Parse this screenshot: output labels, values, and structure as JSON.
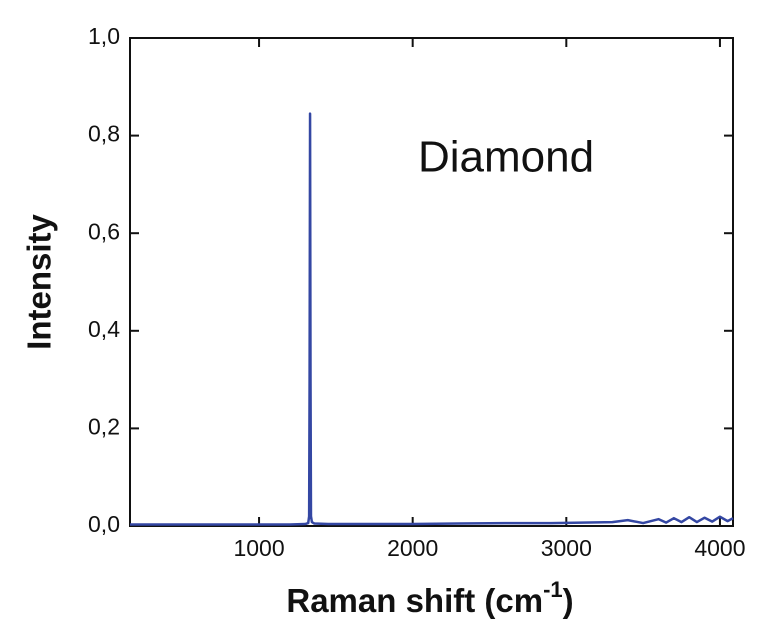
{
  "chart_data": {
    "type": "line",
    "ylabel": "Intensity",
    "xlabel": {
      "text": "Raman shift (cm",
      "superscript": "-1",
      "suffix": ")"
    },
    "annotation": "Diamond",
    "xlim": [
      160,
      4085
    ],
    "ylim": [
      0,
      1.0
    ],
    "xticks": [
      1000,
      2000,
      3000,
      4000
    ],
    "yticks": [
      {
        "value": 0,
        "label": "0,0"
      },
      {
        "value": 0.2,
        "label": "0,2"
      },
      {
        "value": 0.4,
        "label": "0,4"
      },
      {
        "value": 0.6,
        "label": "0,6"
      },
      {
        "value": 0.8,
        "label": "0,8"
      },
      {
        "value": 1.0,
        "label": "1,0"
      }
    ],
    "grid": false,
    "series": [
      {
        "color": "#3447a3",
        "x": [
          160,
          400,
          700,
          1000,
          1200,
          1300,
          1320,
          1326,
          1329,
          1332,
          1335,
          1338,
          1344,
          1360,
          1450,
          1700,
          2000,
          2300,
          2600,
          2900,
          3100,
          3300,
          3400,
          3500,
          3600,
          3650,
          3700,
          3750,
          3800,
          3850,
          3900,
          3950,
          4000,
          4050,
          4085
        ],
        "values": [
          0.003,
          0.003,
          0.003,
          0.003,
          0.003,
          0.004,
          0.006,
          0.02,
          0.3,
          0.845,
          0.3,
          0.02,
          0.008,
          0.005,
          0.004,
          0.004,
          0.004,
          0.005,
          0.006,
          0.006,
          0.007,
          0.008,
          0.012,
          0.006,
          0.014,
          0.007,
          0.016,
          0.008,
          0.018,
          0.008,
          0.017,
          0.009,
          0.019,
          0.01,
          0.016
        ]
      }
    ]
  }
}
